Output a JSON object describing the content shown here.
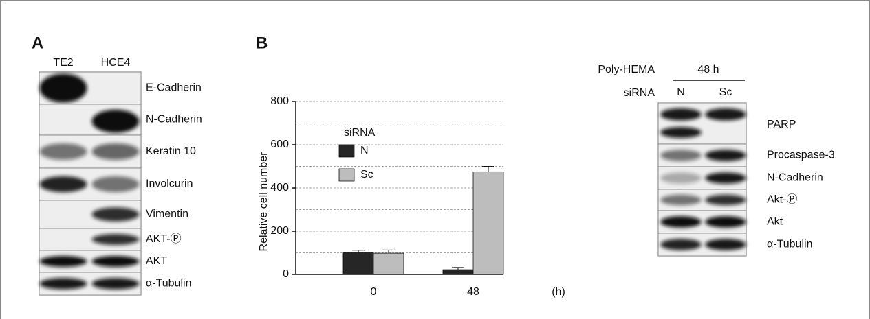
{
  "panel_a": {
    "label": "A",
    "lanes": [
      "TE2",
      "HCE4"
    ],
    "rows": [
      "E-Cadherin",
      "N-Cadherin",
      "Keratin 10",
      "Involcurin",
      "Vimentin",
      "AKT-Ⓟ",
      "AKT",
      "α-Tubulin"
    ]
  },
  "panel_b": {
    "label": "B",
    "condition_label": "Poly-HEMA",
    "condition_value": "48 h",
    "sirna_label": "siRNA",
    "lanes": [
      "N",
      "Sc"
    ],
    "rows": [
      "PARP",
      "Procaspase-3",
      "N-Cadherin",
      "Akt-Ⓟ",
      "Akt",
      "α-Tubulin"
    ]
  },
  "chart_data": {
    "type": "bar",
    "y_label": "Relative cell number",
    "x_unit": "(h)",
    "legend_title": "siRNA",
    "categories": [
      "0",
      "48"
    ],
    "series": [
      {
        "name": "N",
        "color": "#262626",
        "values": [
          100,
          22
        ],
        "errors": [
          12,
          10
        ]
      },
      {
        "name": "Sc",
        "color": "#bdbdbd",
        "values": [
          98,
          475
        ],
        "errors": [
          15,
          25
        ]
      }
    ],
    "ylim": [
      0,
      800
    ],
    "yticks": [
      0,
      200,
      400,
      600,
      800
    ],
    "grid_lines": [
      100,
      200,
      300,
      400,
      500,
      600,
      700,
      800
    ]
  }
}
